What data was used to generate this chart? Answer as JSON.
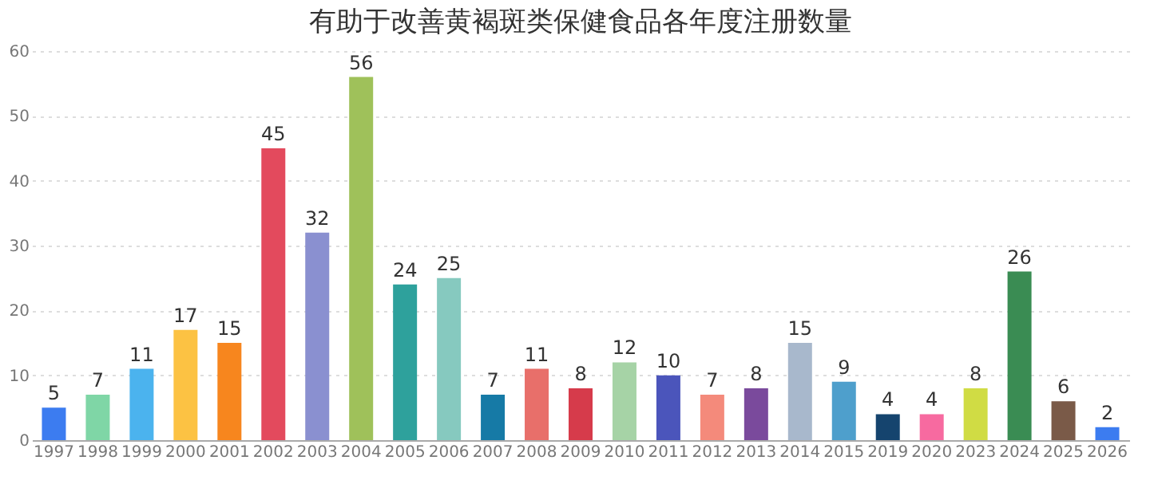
{
  "chart_data": {
    "type": "bar",
    "title": "有助于改善黄褐斑类保健食品各年度注册数量",
    "categories": [
      "1997",
      "1998",
      "1999",
      "2000",
      "2001",
      "2002",
      "2003",
      "2004",
      "2005",
      "2006",
      "2007",
      "2008",
      "2009",
      "2010",
      "2011",
      "2012",
      "2013",
      "2014",
      "2015",
      "2019",
      "2020",
      "2023",
      "2024",
      "2025",
      "2026"
    ],
    "values": [
      5,
      7,
      11,
      17,
      15,
      45,
      32,
      56,
      24,
      25,
      7,
      11,
      8,
      12,
      10,
      7,
      8,
      15,
      9,
      4,
      4,
      8,
      26,
      6,
      2
    ],
    "colors": [
      "#3c7cf0",
      "#7fd6a6",
      "#4bb3ee",
      "#fcc243",
      "#f7861e",
      "#e34a5d",
      "#8a90d0",
      "#9fc15a",
      "#2ea19c",
      "#86c9bf",
      "#167aa6",
      "#e86f6a",
      "#d63b4b",
      "#a6d3a6",
      "#4b55bb",
      "#f48a7b",
      "#7a4a9c",
      "#a8b8cc",
      "#4e9fcc",
      "#15446e",
      "#f76aa0",
      "#d0dc44",
      "#3a8c53",
      "#7a5a48",
      "#3c7cf0"
    ],
    "ylim": [
      0,
      60
    ],
    "yticks": [
      0,
      10,
      20,
      30,
      40,
      50,
      60
    ],
    "grid": "y",
    "data_labels": true
  }
}
